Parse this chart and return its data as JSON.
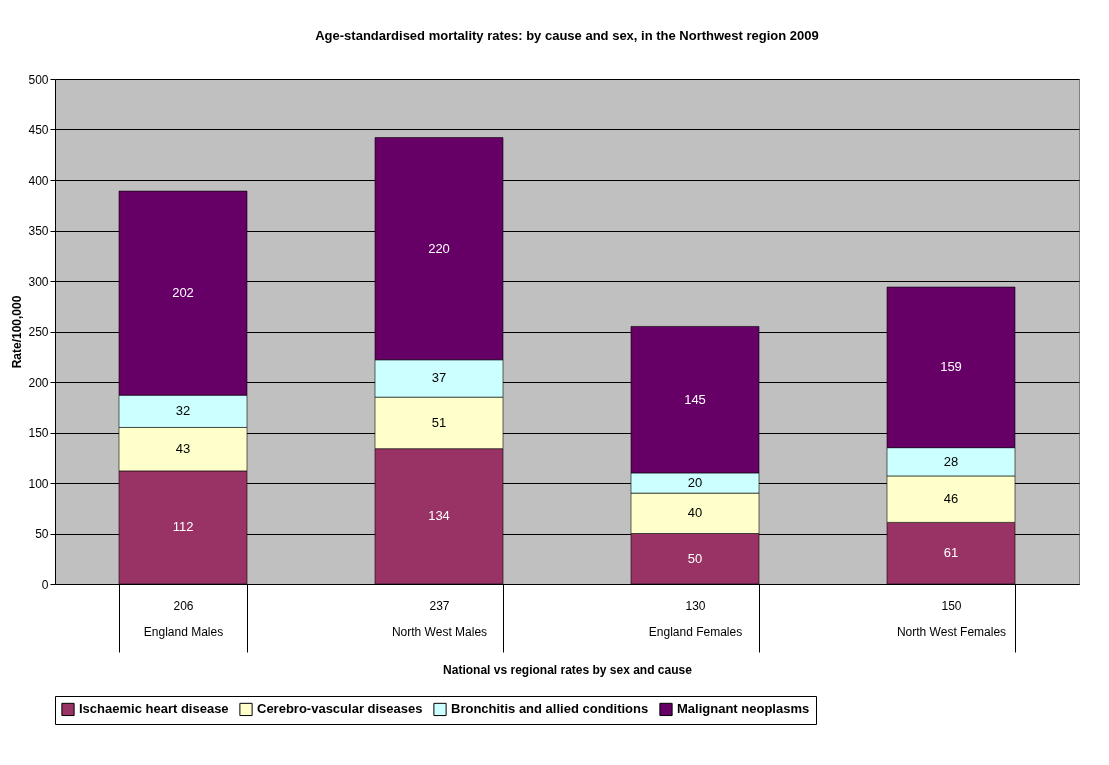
{
  "chart_data": {
    "type": "bar",
    "stacked": true,
    "title": "Age-standardised mortality rates: by cause and sex, in the Northwest region 2009",
    "xlabel": "National vs regional rates by sex and cause",
    "ylabel": "Rate/100,000",
    "categories": [
      "206\nEngland Males",
      "237\nNorth West Males",
      "130\nEngland Females",
      "150\nNorth West Females"
    ],
    "series": [
      {
        "name": "Ischaemic heart disease",
        "color": "#993366",
        "values": [
          112,
          134,
          50,
          61
        ]
      },
      {
        "name": "Cerebro-vascular diseases",
        "color": "#ffffcc",
        "values": [
          43,
          51,
          40,
          46
        ]
      },
      {
        "name": "Bronchitis and allied conditions",
        "color": "#ccffff",
        "values": [
          32,
          37,
          20,
          28
        ]
      },
      {
        "name": "Malignant neoplasms",
        "color": "#660066",
        "values": [
          202,
          220,
          145,
          159
        ]
      }
    ],
    "ylim": [
      0,
      500
    ],
    "yticks": [
      0,
      50,
      100,
      150,
      200,
      250,
      300,
      350,
      400,
      450,
      500
    ],
    "grid": "y",
    "legend": "bottom",
    "data_labels": true
  }
}
